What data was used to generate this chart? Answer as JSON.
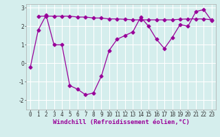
{
  "line1_x": [
    0,
    1,
    2,
    3,
    4,
    5,
    6,
    7,
    8,
    9,
    10,
    11,
    12,
    13,
    14,
    15,
    16,
    17,
    18,
    19,
    20,
    21,
    22,
    23
  ],
  "line1_y": [
    -0.2,
    1.8,
    2.6,
    1.0,
    1.0,
    -1.2,
    -1.4,
    -1.7,
    -1.6,
    -0.7,
    0.7,
    1.3,
    1.5,
    1.7,
    2.5,
    2.0,
    1.3,
    0.8,
    1.4,
    2.1,
    2.0,
    2.8,
    2.9,
    2.3
  ],
  "line2_x": [
    1,
    2,
    3,
    4,
    5,
    6,
    7,
    8,
    9,
    10,
    11,
    12,
    13,
    14,
    15,
    16,
    17,
    18,
    19,
    20,
    21,
    22,
    23
  ],
  "line2_y": [
    2.55,
    2.55,
    2.55,
    2.55,
    2.55,
    2.5,
    2.5,
    2.45,
    2.45,
    2.4,
    2.4,
    2.38,
    2.35,
    2.35,
    2.35,
    2.35,
    2.35,
    2.35,
    2.38,
    2.4,
    2.4,
    2.4,
    2.35
  ],
  "line_color": "#990099",
  "bg_color": "#d5eeed",
  "grid_color": "#ffffff",
  "xlabel": "Windchill (Refroidissement éolien,°C)",
  "ylim": [
    -2.5,
    3.2
  ],
  "xlim": [
    -0.5,
    23.5
  ],
  "yticks": [
    -2,
    -1,
    0,
    1,
    2,
    3
  ],
  "xticks": [
    0,
    1,
    2,
    3,
    4,
    5,
    6,
    7,
    8,
    9,
    10,
    11,
    12,
    13,
    14,
    15,
    16,
    17,
    18,
    19,
    20,
    21,
    22,
    23
  ],
  "xtick_labels": [
    "0",
    "1",
    "2",
    "3",
    "4",
    "5",
    "6",
    "7",
    "8",
    "9",
    "10",
    "11",
    "12",
    "13",
    "14",
    "15",
    "16",
    "17",
    "18",
    "19",
    "20",
    "21",
    "22",
    "23"
  ],
  "xlabel_fontsize": 6.5,
  "tick_fontsize": 5.5,
  "marker": "D",
  "marker_size": 2.5,
  "linewidth": 0.9
}
